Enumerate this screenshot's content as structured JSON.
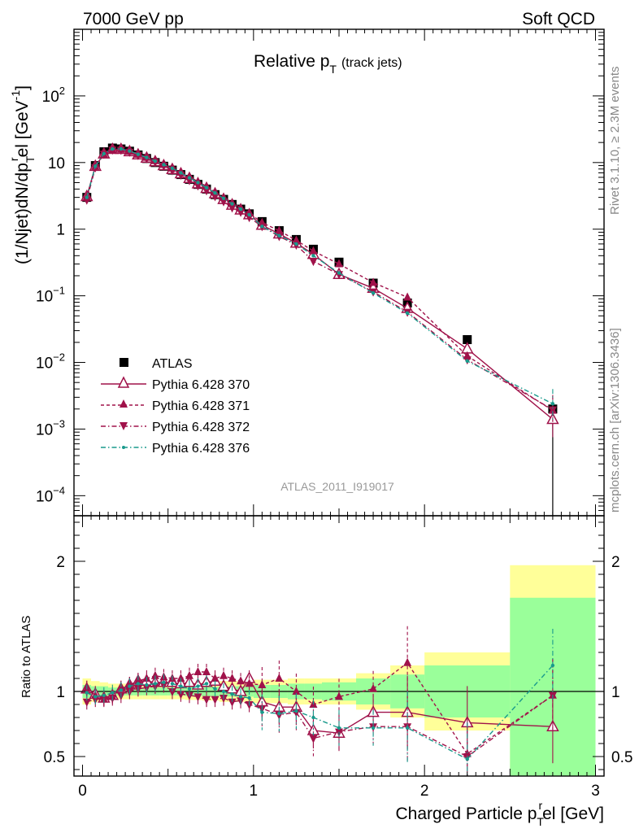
{
  "header": {
    "left": "7000 GeV pp",
    "right": "Soft QCD"
  },
  "side_labels": {
    "top": "Rivet 3.1.10, ≥ 2.3M events",
    "bottom": "mcplots.cern.ch [arXiv:1306.3436]"
  },
  "analysis_id": "ATLAS_2011_I919017",
  "colors": {
    "atlas": "#000000",
    "mc": "#a0124a",
    "mc376": "#199a8c",
    "band_inner": "#9aff9a",
    "band_outer": "#ffff99"
  },
  "chart_data": [
    {
      "type": "scatter",
      "title_main": "Relative p",
      "title_sub": "T",
      "title_extra": "(track jets)",
      "ylabel": {
        "a": "(1/Njet)dN/dp",
        "sub": "T",
        "sup": "r",
        "b": "el [GeV",
        "sup2": "-1",
        "c": "]"
      },
      "yscale": "log",
      "ylim": [
        5e-05,
        1000
      ],
      "xlim": [
        -0.05,
        3.05
      ],
      "yticks": [
        {
          "v": 0.0001,
          "base": "10",
          "exp": "−4"
        },
        {
          "v": 0.001,
          "base": "10",
          "exp": "−3"
        },
        {
          "v": 0.01,
          "base": "10",
          "exp": "−2"
        },
        {
          "v": 0.1,
          "base": "10",
          "exp": "−1"
        },
        {
          "v": 1,
          "base": "1",
          "exp": ""
        },
        {
          "v": 10,
          "base": "10",
          "exp": ""
        },
        {
          "v": 100,
          "base": "10",
          "exp": "2"
        }
      ],
      "legend_position": "center-left",
      "legend": [
        "ATLAS",
        "Pythia 6.428 370",
        "Pythia 6.428 371",
        "Pythia 6.428 372",
        "Pythia 6.428 376"
      ],
      "x": [
        0.025,
        0.075,
        0.125,
        0.175,
        0.225,
        0.275,
        0.325,
        0.375,
        0.425,
        0.475,
        0.525,
        0.575,
        0.625,
        0.675,
        0.725,
        0.775,
        0.825,
        0.875,
        0.925,
        0.975,
        1.05,
        1.15,
        1.25,
        1.35,
        1.5,
        1.7,
        1.9,
        2.25,
        2.75
      ],
      "series": [
        {
          "name": "ATLAS",
          "values": [
            3.0,
            9.0,
            14.5,
            16.5,
            16.0,
            14.8,
            13.0,
            11.5,
            10.0,
            8.8,
            7.7,
            6.6,
            5.6,
            4.7,
            4.0,
            3.3,
            2.8,
            2.35,
            2.0,
            1.7,
            1.3,
            0.95,
            0.7,
            0.5,
            0.32,
            0.155,
            0.078,
            0.022,
            0.002
          ]
        },
        {
          "name": "Pythia 6.428 370",
          "values": [
            3.1,
            8.8,
            13.5,
            15.8,
            15.8,
            14.6,
            13.1,
            11.7,
            10.3,
            9.0,
            7.9,
            6.8,
            5.8,
            4.8,
            4.1,
            3.4,
            2.8,
            2.3,
            1.95,
            1.65,
            1.15,
            0.85,
            0.62,
            0.42,
            0.21,
            0.13,
            0.065,
            0.016,
            0.0014
          ]
        },
        {
          "name": "Pythia 6.428 371",
          "values": [
            3.05,
            8.7,
            13.3,
            15.6,
            15.7,
            14.7,
            13.2,
            11.9,
            10.6,
            9.3,
            8.2,
            7.1,
            6.1,
            5.2,
            4.4,
            3.6,
            3.0,
            2.5,
            2.1,
            1.75,
            1.25,
            0.95,
            0.68,
            0.47,
            0.3,
            0.158,
            0.095,
            0.0125,
            0.0019
          ]
        },
        {
          "name": "Pythia 6.428 372",
          "values": [
            2.75,
            8.4,
            13.4,
            15.5,
            15.4,
            14.4,
            12.8,
            11.5,
            10.1,
            8.9,
            7.6,
            6.5,
            5.4,
            4.5,
            3.8,
            3.1,
            2.6,
            2.1,
            1.8,
            1.5,
            1.1,
            0.78,
            0.58,
            0.33,
            0.21,
            0.115,
            0.057,
            0.011,
            0.00195
          ]
        },
        {
          "name": "Pythia 6.428 376",
          "values": [
            3.0,
            8.8,
            13.6,
            16.0,
            16.0,
            14.9,
            13.3,
            11.9,
            10.5,
            9.3,
            8.2,
            7.0,
            5.9,
            5.0,
            4.2,
            3.5,
            2.9,
            2.4,
            2.0,
            1.65,
            1.1,
            0.8,
            0.6,
            0.4,
            0.22,
            0.11,
            0.055,
            0.0105,
            0.0024
          ]
        }
      ]
    },
    {
      "type": "scatter",
      "ylabel": "Ratio to ATLAS",
      "xlabel": {
        "a": "Charged Particle p",
        "sub": "T",
        "sup": "r",
        "b": "el [GeV]"
      },
      "ylim": [
        0.35,
        2.35
      ],
      "xlim": [
        -0.05,
        3.05
      ],
      "xticks": [
        {
          "v": 0,
          "label": "0"
        },
        {
          "v": 1,
          "label": "1"
        },
        {
          "v": 2,
          "label": "2"
        },
        {
          "v": 3,
          "label": "3"
        }
      ],
      "yticks": [
        {
          "v": 0.5,
          "label": "0.5"
        },
        {
          "v": 1,
          "label": "1"
        },
        {
          "v": 2,
          "label": "2"
        }
      ],
      "x": [
        0.025,
        0.075,
        0.125,
        0.175,
        0.225,
        0.275,
        0.325,
        0.375,
        0.425,
        0.475,
        0.525,
        0.575,
        0.625,
        0.675,
        0.725,
        0.775,
        0.825,
        0.875,
        0.925,
        0.975,
        1.05,
        1.15,
        1.25,
        1.35,
        1.5,
        1.7,
        1.9,
        2.25,
        2.75
      ],
      "x_edges": [
        0.0,
        0.05,
        0.1,
        0.15,
        0.2,
        0.25,
        0.3,
        0.35,
        0.4,
        0.45,
        0.5,
        0.55,
        0.6,
        0.65,
        0.7,
        0.75,
        0.8,
        0.85,
        0.9,
        0.95,
        1.0,
        1.1,
        1.2,
        1.3,
        1.4,
        1.6,
        1.8,
        2.0,
        2.5,
        3.0
      ],
      "band_inner": [
        0.05,
        0.04,
        0.04,
        0.03,
        0.03,
        0.03,
        0.03,
        0.03,
        0.03,
        0.03,
        0.03,
        0.03,
        0.035,
        0.035,
        0.035,
        0.035,
        0.04,
        0.04,
        0.04,
        0.04,
        0.05,
        0.05,
        0.06,
        0.06,
        0.07,
        0.1,
        0.13,
        0.2,
        0.72
      ],
      "band_outer": [
        0.1,
        0.08,
        0.07,
        0.06,
        0.06,
        0.06,
        0.06,
        0.06,
        0.06,
        0.06,
        0.06,
        0.06,
        0.065,
        0.065,
        0.07,
        0.07,
        0.08,
        0.08,
        0.08,
        0.08,
        0.09,
        0.09,
        0.1,
        0.1,
        0.1,
        0.14,
        0.2,
        0.3,
        0.97
      ],
      "series": [
        {
          "name": "Pythia 6.428 370",
          "values": [
            1.02,
            0.98,
            0.95,
            0.97,
            1.02,
            1.05,
            1.08,
            1.08,
            1.07,
            1.07,
            1.07,
            1.06,
            1.07,
            1.05,
            1.07,
            1.08,
            1.04,
            1.02,
            1.0,
            1.1,
            0.92,
            0.88,
            0.88,
            0.7,
            0.68,
            0.84,
            0.84,
            0.76,
            0.73
          ]
        },
        {
          "name": "Pythia 6.428 371",
          "values": [
            1.02,
            0.97,
            0.94,
            0.96,
            1.02,
            1.05,
            1.08,
            1.1,
            1.12,
            1.11,
            1.1,
            1.1,
            1.12,
            1.15,
            1.15,
            1.1,
            1.12,
            1.1,
            1.08,
            1.06,
            1.05,
            1.1,
            1.0,
            0.9,
            0.96,
            1.02,
            1.22,
            0.52,
            0.97
          ]
        },
        {
          "name": "Pythia 6.428 372",
          "values": [
            0.92,
            0.94,
            0.94,
            0.95,
            0.97,
            1.0,
            1.02,
            1.03,
            1.04,
            1.05,
            1.0,
            0.98,
            0.97,
            0.96,
            0.94,
            0.94,
            0.95,
            0.92,
            0.93,
            0.9,
            0.87,
            0.82,
            0.84,
            0.64,
            0.69,
            0.73,
            0.73,
            0.5,
            0.97
          ]
        },
        {
          "name": "Pythia 6.428 376",
          "values": [
            0.99,
            0.96,
            0.97,
            0.99,
            1.01,
            1.04,
            1.06,
            1.05,
            1.06,
            1.07,
            1.06,
            1.04,
            1.02,
            1.04,
            1.06,
            1.02,
            1.0,
            0.98,
            0.96,
            0.95,
            0.84,
            0.83,
            0.85,
            0.8,
            0.72,
            0.72,
            0.72,
            0.48,
            1.2
          ]
        }
      ]
    }
  ]
}
